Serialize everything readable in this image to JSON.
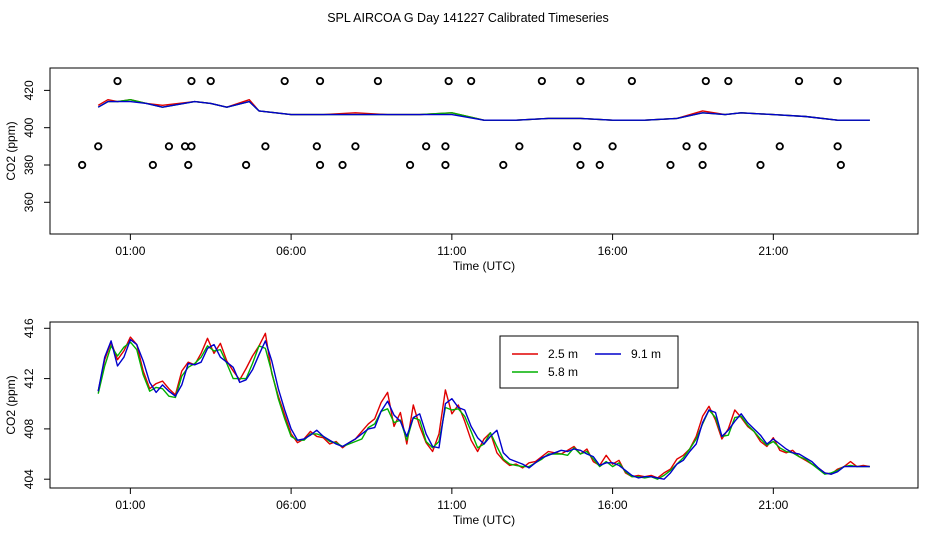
{
  "page_title": "SPL AIRCOA G  Day 141227  Calibrated Timeseries",
  "chart_data": [
    {
      "type": "line",
      "panel": "top",
      "xlabel": "Time (UTC)",
      "ylabel": "CO2 (ppm)",
      "x_ticks": [
        1,
        6,
        11,
        16,
        21
      ],
      "x_tick_labels": [
        "01:00",
        "06:00",
        "11:00",
        "16:00",
        "21:00"
      ],
      "y_ticks": [
        360,
        380,
        400,
        420
      ],
      "y_tick_labels": [
        "360",
        "380",
        "400",
        "420"
      ],
      "xlim": [
        -1.5,
        25.5
      ],
      "ylim": [
        343,
        432
      ],
      "line_x": [
        0,
        0.3,
        0.6,
        1,
        1.5,
        2,
        3,
        3.5,
        4,
        4.7,
        5,
        6,
        7,
        8,
        9,
        10,
        11,
        12,
        13,
        14,
        15,
        16,
        17,
        18,
        18.8,
        19.5,
        20,
        21,
        22,
        23,
        24
      ],
      "series": [
        {
          "name": "2.5 m",
          "color": "#e00000",
          "values": [
            412,
            415,
            414,
            415,
            413,
            412,
            414,
            413,
            411,
            415,
            409,
            407,
            407,
            408,
            407,
            407,
            408,
            404,
            404,
            405,
            405,
            404,
            404,
            405,
            409,
            407,
            408,
            407,
            406,
            404,
            404
          ]
        },
        {
          "name": "5.8 m",
          "color": "#00b000",
          "values": [
            411,
            414,
            414,
            415,
            413,
            411,
            414,
            413,
            411,
            414,
            409,
            407,
            407,
            407,
            407,
            407,
            408,
            404,
            404,
            405,
            405,
            404,
            404,
            405,
            408,
            407,
            408,
            407,
            406,
            404,
            404
          ]
        },
        {
          "name": "9.1 m",
          "color": "#0000cc",
          "values": [
            411,
            414,
            414,
            414,
            413,
            411,
            414,
            413,
            411,
            414,
            409,
            407,
            407,
            407,
            407,
            407,
            407,
            404,
            404,
            405,
            405,
            404,
            404,
            405,
            408,
            407,
            408,
            407,
            406,
            404,
            404
          ]
        }
      ],
      "markers": {
        "symbol": "circle",
        "points": [
          [
            -0.5,
            380
          ],
          [
            0,
            390
          ],
          [
            0.6,
            425
          ],
          [
            1.7,
            380
          ],
          [
            2.2,
            390
          ],
          [
            2.7,
            390
          ],
          [
            2.8,
            380
          ],
          [
            2.9,
            425
          ],
          [
            2.9,
            390
          ],
          [
            3.5,
            425
          ],
          [
            4.6,
            380
          ],
          [
            5.2,
            390
          ],
          [
            5.8,
            425
          ],
          [
            6.8,
            390
          ],
          [
            6.9,
            425
          ],
          [
            6.9,
            380
          ],
          [
            7.6,
            380
          ],
          [
            8.0,
            390
          ],
          [
            8.7,
            425
          ],
          [
            9.7,
            380
          ],
          [
            10.2,
            390
          ],
          [
            10.8,
            380
          ],
          [
            10.8,
            390
          ],
          [
            10.9,
            425
          ],
          [
            11.6,
            425
          ],
          [
            12.6,
            380
          ],
          [
            13.1,
            390
          ],
          [
            13.8,
            425
          ],
          [
            14.9,
            390
          ],
          [
            15.0,
            425
          ],
          [
            15.0,
            380
          ],
          [
            15.6,
            380
          ],
          [
            16.0,
            390
          ],
          [
            16.6,
            425
          ],
          [
            17.8,
            380
          ],
          [
            18.3,
            390
          ],
          [
            18.8,
            390
          ],
          [
            18.8,
            380
          ],
          [
            18.9,
            425
          ],
          [
            19.6,
            425
          ],
          [
            20.6,
            380
          ],
          [
            21.2,
            390
          ],
          [
            21.8,
            425
          ],
          [
            23.0,
            425
          ],
          [
            23.0,
            390
          ],
          [
            23.1,
            380
          ]
        ]
      }
    },
    {
      "type": "line",
      "panel": "bottom",
      "xlabel": "Time (UTC)",
      "ylabel": "CO2 (ppm)",
      "x_ticks": [
        1,
        6,
        11,
        16,
        21
      ],
      "x_tick_labels": [
        "01:00",
        "06:00",
        "11:00",
        "16:00",
        "21:00"
      ],
      "y_ticks": [
        404,
        408,
        412,
        416
      ],
      "y_tick_labels": [
        "404",
        "408",
        "412",
        "416"
      ],
      "xlim": [
        -1.5,
        25.5
      ],
      "ylim": [
        403.3,
        416.5
      ],
      "legend_position": "top-right",
      "x": [
        0,
        0.2,
        0.4,
        0.6,
        0.8,
        1,
        1.2,
        1.4,
        1.6,
        1.8,
        2,
        2.2,
        2.4,
        2.6,
        2.8,
        3,
        3.2,
        3.4,
        3.6,
        3.8,
        4,
        4.2,
        4.4,
        4.6,
        4.8,
        5,
        5.2,
        5.4,
        5.6,
        5.8,
        6,
        6.2,
        6.4,
        6.6,
        6.8,
        7,
        7.2,
        7.4,
        7.6,
        7.8,
        8,
        8.2,
        8.4,
        8.6,
        8.8,
        9,
        9.2,
        9.4,
        9.6,
        9.8,
        10,
        10.2,
        10.4,
        10.6,
        10.8,
        11,
        11.2,
        11.4,
        11.6,
        11.8,
        12,
        12.2,
        12.4,
        12.6,
        12.8,
        13,
        13.2,
        13.4,
        13.6,
        13.8,
        14,
        14.2,
        14.4,
        14.6,
        14.8,
        15,
        15.2,
        15.4,
        15.6,
        15.8,
        16,
        16.2,
        16.4,
        16.6,
        16.8,
        17,
        17.2,
        17.4,
        17.6,
        17.8,
        18,
        18.2,
        18.4,
        18.6,
        18.8,
        19,
        19.2,
        19.4,
        19.6,
        19.8,
        20,
        20.2,
        20.4,
        20.6,
        20.8,
        21,
        21.2,
        21.4,
        21.6,
        21.8,
        22,
        22.2,
        22.4,
        22.6,
        22.8,
        23,
        23.2,
        23.4,
        23.6,
        23.8,
        24
      ],
      "series": [
        {
          "name": "2.5 m",
          "color": "#e00000",
          "values": [
            411.0,
            413.5,
            414.9,
            413.5,
            414.2,
            415.3,
            414.7,
            412.6,
            411.2,
            411.6,
            411.8,
            411.2,
            410.7,
            412.6,
            413.3,
            413.1,
            414.0,
            415.2,
            414.0,
            414.8,
            413.4,
            412.6,
            411.9,
            412.8,
            413.8,
            414.6,
            415.6,
            412.4,
            410.6,
            409.1,
            407.6,
            406.9,
            407.2,
            407.8,
            407.4,
            407.3,
            406.8,
            407.0,
            406.5,
            406.9,
            407.2,
            407.8,
            408.4,
            408.8,
            410.1,
            410.9,
            408.2,
            409.3,
            406.8,
            409.9,
            408.2,
            406.9,
            406.2,
            407.6,
            411.1,
            409.2,
            409.9,
            408.6,
            407.1,
            406.2,
            407.2,
            407.7,
            406.1,
            405.5,
            405.1,
            405.2,
            404.9,
            405.3,
            405.4,
            405.8,
            406.2,
            406.1,
            406.0,
            406.3,
            406.6,
            406.0,
            406.4,
            405.4,
            405.1,
            405.9,
            405.2,
            405.5,
            404.5,
            404.2,
            404.3,
            404.2,
            404.3,
            404.1,
            404.5,
            404.8,
            405.6,
            405.9,
            406.4,
            407.4,
            409.0,
            409.8,
            408.7,
            407.2,
            408.0,
            409.5,
            408.9,
            408.2,
            407.8,
            407.0,
            406.6,
            407.3,
            406.3,
            406.1,
            406.3,
            405.8,
            405.5,
            405.2,
            404.9,
            404.5,
            404.4,
            404.8,
            405.0,
            405.4,
            405.0,
            405.1,
            405.0
          ]
        },
        {
          "name": "5.8 m",
          "color": "#00b000",
          "values": [
            410.8,
            413.0,
            414.6,
            413.8,
            414.5,
            414.9,
            414.3,
            412.3,
            411.0,
            411.3,
            411.2,
            410.6,
            410.5,
            412.2,
            412.9,
            413.2,
            413.7,
            414.6,
            414.2,
            414.3,
            413.2,
            412.0,
            412.0,
            412.0,
            413.2,
            414.6,
            414.4,
            412.5,
            410.4,
            408.8,
            407.4,
            407.1,
            407.1,
            407.6,
            407.6,
            407.4,
            407.0,
            406.9,
            406.6,
            406.8,
            407.0,
            407.2,
            408.1,
            408.4,
            409.4,
            409.6,
            408.5,
            408.7,
            407.1,
            408.9,
            408.7,
            407.0,
            406.5,
            407.0,
            409.7,
            409.5,
            409.6,
            409.0,
            407.8,
            406.5,
            406.8,
            407.7,
            406.6,
            405.6,
            405.2,
            405.1,
            405.0,
            405.0,
            405.3,
            405.6,
            406.0,
            406.0,
            406.0,
            405.9,
            406.5,
            406.0,
            406.2,
            405.6,
            405.0,
            405.4,
            405.0,
            405.3,
            404.6,
            404.2,
            404.2,
            404.1,
            404.2,
            404.0,
            404.3,
            404.7,
            405.2,
            405.7,
            406.4,
            407.2,
            408.4,
            409.5,
            408.9,
            407.4,
            407.5,
            408.9,
            409.0,
            408.3,
            407.8,
            407.2,
            406.7,
            407.0,
            406.5,
            406.2,
            406.1,
            405.8,
            405.6,
            405.2,
            404.8,
            404.4,
            404.5,
            404.7,
            405.0,
            405.1,
            405.0,
            405.0,
            405.0
          ]
        },
        {
          "name": "9.1 m",
          "color": "#0000cc",
          "values": [
            411.0,
            413.7,
            415.0,
            413.0,
            413.7,
            415.1,
            414.7,
            413.4,
            411.7,
            410.9,
            411.5,
            411.0,
            410.6,
            411.5,
            413.2,
            413.1,
            413.3,
            414.4,
            414.7,
            413.7,
            413.3,
            412.9,
            411.7,
            411.9,
            412.7,
            413.9,
            415.0,
            413.4,
            411.2,
            409.5,
            408.0,
            407.1,
            407.2,
            407.5,
            407.9,
            407.4,
            407.1,
            406.8,
            406.6,
            406.9,
            407.2,
            407.6,
            408.0,
            408.1,
            409.4,
            410.2,
            409.1,
            408.6,
            407.4,
            408.9,
            409.2,
            407.6,
            406.6,
            406.5,
            410.0,
            410.4,
            409.7,
            409.5,
            408.2,
            407.3,
            406.8,
            407.4,
            407.9,
            406.1,
            405.6,
            405.4,
            405.2,
            404.9,
            405.3,
            405.7,
            405.9,
            406.1,
            406.3,
            406.2,
            406.4,
            406.3,
            406.0,
            405.8,
            405.1,
            405.3,
            405.3,
            405.1,
            404.7,
            404.3,
            404.1,
            404.2,
            404.2,
            404.1,
            404.0,
            404.5,
            405.2,
            405.5,
            406.2,
            406.8,
            408.5,
            409.5,
            409.3,
            407.4,
            407.9,
            408.6,
            409.2,
            408.5,
            408.0,
            407.5,
            406.8,
            407.2,
            406.8,
            406.4,
            406.1,
            406.0,
            405.7,
            405.4,
            404.9,
            404.5,
            404.4,
            404.6,
            405.0,
            405.0,
            405.0,
            405.0,
            405.0
          ]
        }
      ]
    }
  ]
}
